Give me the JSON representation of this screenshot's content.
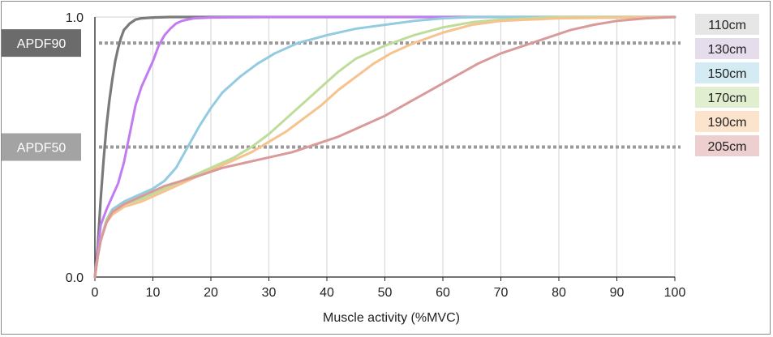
{
  "chart_data": {
    "type": "line",
    "title": "",
    "xlabel": "Muscle activity (%MVC)",
    "ylabel": "",
    "xlim": [
      0,
      100
    ],
    "ylim": [
      0,
      1
    ],
    "x_ticks": [
      0,
      10,
      20,
      30,
      40,
      50,
      60,
      70,
      80,
      90,
      100
    ],
    "y_ticks": [
      {
        "value": 0,
        "label": "0.0"
      },
      {
        "value": 1,
        "label": "1.0"
      }
    ],
    "grid": "vertical",
    "legend_position": "right",
    "reference_lines": [
      {
        "name": "APDF90",
        "y": 0.9,
        "box_color": "#6b6b6b"
      },
      {
        "name": "APDF50",
        "y": 0.5,
        "box_color": "#a3a3a3"
      }
    ],
    "series": [
      {
        "name": "110cm",
        "color": "#7a7a7a",
        "legend_bg": "#e6e6e6",
        "points": [
          [
            0,
            0
          ],
          [
            0.5,
            0.12
          ],
          [
            1,
            0.3
          ],
          [
            1.5,
            0.45
          ],
          [
            2,
            0.58
          ],
          [
            2.5,
            0.68
          ],
          [
            3,
            0.76
          ],
          [
            3.5,
            0.83
          ],
          [
            4,
            0.88
          ],
          [
            4.5,
            0.92
          ],
          [
            5,
            0.95
          ],
          [
            6,
            0.975
          ],
          [
            7,
            0.99
          ],
          [
            8,
            0.995
          ],
          [
            10,
            0.998
          ],
          [
            13,
            1.0
          ],
          [
            40,
            1.0
          ],
          [
            70,
            1.0
          ],
          [
            100,
            1.0
          ]
        ]
      },
      {
        "name": "130cm",
        "color": "#c27cf2",
        "legend_bg": "#e5dcec",
        "points": [
          [
            0,
            0
          ],
          [
            0.5,
            0.1
          ],
          [
            1,
            0.2
          ],
          [
            2,
            0.26
          ],
          [
            3,
            0.31
          ],
          [
            4,
            0.36
          ],
          [
            5,
            0.44
          ],
          [
            6,
            0.55
          ],
          [
            7,
            0.66
          ],
          [
            8,
            0.73
          ],
          [
            9,
            0.78
          ],
          [
            10,
            0.83
          ],
          [
            11,
            0.89
          ],
          [
            12,
            0.93
          ],
          [
            13,
            0.955
          ],
          [
            14,
            0.975
          ],
          [
            15,
            0.985
          ],
          [
            17,
            0.995
          ],
          [
            20,
            0.998
          ],
          [
            30,
            1.0
          ],
          [
            100,
            1.0
          ]
        ]
      },
      {
        "name": "150cm",
        "color": "#93cbe0",
        "legend_bg": "#d4ebf3",
        "points": [
          [
            0,
            0
          ],
          [
            0.5,
            0.08
          ],
          [
            1,
            0.14
          ],
          [
            2,
            0.22
          ],
          [
            3,
            0.26
          ],
          [
            5,
            0.29
          ],
          [
            8,
            0.32
          ],
          [
            10,
            0.34
          ],
          [
            12,
            0.37
          ],
          [
            14,
            0.42
          ],
          [
            16,
            0.5
          ],
          [
            18,
            0.58
          ],
          [
            20,
            0.65
          ],
          [
            22,
            0.71
          ],
          [
            25,
            0.77
          ],
          [
            28,
            0.82
          ],
          [
            31,
            0.86
          ],
          [
            35,
            0.9
          ],
          [
            40,
            0.93
          ],
          [
            45,
            0.955
          ],
          [
            50,
            0.97
          ],
          [
            55,
            0.985
          ],
          [
            60,
            0.995
          ],
          [
            65,
            1.0
          ],
          [
            100,
            1.0
          ]
        ]
      },
      {
        "name": "170cm",
        "color": "#bedc9a",
        "legend_bg": "#e1eed0",
        "points": [
          [
            0,
            0
          ],
          [
            0.5,
            0.08
          ],
          [
            1,
            0.14
          ],
          [
            2,
            0.22
          ],
          [
            3,
            0.25
          ],
          [
            5,
            0.28
          ],
          [
            8,
            0.3
          ],
          [
            10,
            0.32
          ],
          [
            12,
            0.34
          ],
          [
            15,
            0.37
          ],
          [
            18,
            0.4
          ],
          [
            21,
            0.43
          ],
          [
            24,
            0.46
          ],
          [
            27,
            0.5
          ],
          [
            30,
            0.55
          ],
          [
            33,
            0.61
          ],
          [
            36,
            0.67
          ],
          [
            39,
            0.73
          ],
          [
            42,
            0.79
          ],
          [
            45,
            0.84
          ],
          [
            48,
            0.87
          ],
          [
            50,
            0.89
          ],
          [
            55,
            0.93
          ],
          [
            60,
            0.96
          ],
          [
            65,
            0.98
          ],
          [
            70,
            0.99
          ],
          [
            80,
            1.0
          ],
          [
            100,
            1.0
          ]
        ]
      },
      {
        "name": "190cm",
        "color": "#f6c28e",
        "legend_bg": "#fbe3cc",
        "points": [
          [
            0,
            0
          ],
          [
            0.5,
            0.08
          ],
          [
            1,
            0.14
          ],
          [
            2,
            0.21
          ],
          [
            3,
            0.24
          ],
          [
            5,
            0.27
          ],
          [
            8,
            0.29
          ],
          [
            10,
            0.31
          ],
          [
            12,
            0.33
          ],
          [
            15,
            0.36
          ],
          [
            18,
            0.39
          ],
          [
            21,
            0.42
          ],
          [
            24,
            0.45
          ],
          [
            27,
            0.48
          ],
          [
            30,
            0.52
          ],
          [
            33,
            0.56
          ],
          [
            36,
            0.61
          ],
          [
            39,
            0.66
          ],
          [
            42,
            0.72
          ],
          [
            45,
            0.77
          ],
          [
            48,
            0.82
          ],
          [
            51,
            0.86
          ],
          [
            55,
            0.9
          ],
          [
            60,
            0.94
          ],
          [
            65,
            0.97
          ],
          [
            70,
            0.985
          ],
          [
            80,
            0.995
          ],
          [
            100,
            1.0
          ]
        ]
      },
      {
        "name": "205cm",
        "color": "#d99a9a",
        "legend_bg": "#eecfcf",
        "points": [
          [
            0,
            0
          ],
          [
            0.5,
            0.08
          ],
          [
            1,
            0.14
          ],
          [
            2,
            0.21
          ],
          [
            3,
            0.25
          ],
          [
            5,
            0.28
          ],
          [
            8,
            0.31
          ],
          [
            10,
            0.33
          ],
          [
            12,
            0.35
          ],
          [
            15,
            0.37
          ],
          [
            18,
            0.39
          ],
          [
            22,
            0.42
          ],
          [
            26,
            0.44
          ],
          [
            30,
            0.46
          ],
          [
            34,
            0.48
          ],
          [
            38,
            0.51
          ],
          [
            42,
            0.54
          ],
          [
            46,
            0.58
          ],
          [
            50,
            0.62
          ],
          [
            54,
            0.67
          ],
          [
            58,
            0.72
          ],
          [
            62,
            0.77
          ],
          [
            66,
            0.82
          ],
          [
            70,
            0.86
          ],
          [
            74,
            0.89
          ],
          [
            78,
            0.92
          ],
          [
            82,
            0.95
          ],
          [
            86,
            0.97
          ],
          [
            90,
            0.985
          ],
          [
            95,
            0.995
          ],
          [
            100,
            1.0
          ]
        ]
      }
    ]
  }
}
